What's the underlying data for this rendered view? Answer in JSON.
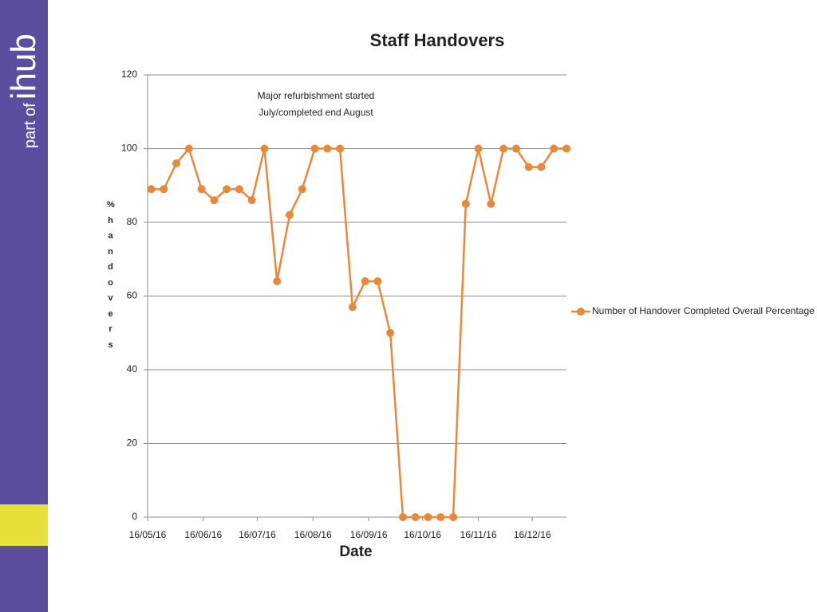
{
  "sidebar": {
    "prefix": "part of",
    "name": "ihub"
  },
  "chart_data": {
    "type": "line",
    "title": "Staff Handovers",
    "annotation": [
      "Major refurbishment started",
      "July/completed end August"
    ],
    "x_label": "Date",
    "y_label": "% handovers",
    "x": [
      "18/05/16",
      "25/05/16",
      "01/06/16",
      "08/06/16",
      "15/06/16",
      "22/06/16",
      "29/06/16",
      "06/07/16",
      "13/07/16",
      "20/07/16",
      "27/07/16",
      "03/08/16",
      "10/08/16",
      "17/08/16",
      "24/08/16",
      "31/08/16",
      "07/09/16",
      "14/09/16",
      "21/09/16",
      "28/09/16",
      "05/10/16",
      "12/10/16",
      "19/10/16",
      "26/10/16",
      "02/11/16",
      "09/11/16",
      "16/11/16",
      "23/11/16",
      "30/11/16",
      "07/12/16",
      "14/12/16",
      "21/12/16",
      "28/12/16",
      "04/01/17"
    ],
    "series": [
      {
        "name": "Number of Handover Completed Overall Percentage",
        "color": "#e8883a",
        "values": [
          89,
          89,
          96,
          100,
          89,
          86,
          89,
          89,
          86,
          100,
          64,
          82,
          89,
          100,
          100,
          100,
          57,
          64,
          64,
          50,
          0,
          0,
          0,
          0,
          0,
          85,
          100,
          85,
          100,
          100,
          95,
          95,
          100,
          100
        ]
      }
    ],
    "xlim": [
      "16/05/16",
      "04/01/17"
    ],
    "xticks": [
      "16/05/16",
      "16/06/16",
      "16/07/16",
      "16/08/16",
      "16/09/16",
      "16/10/16",
      "16/11/16",
      "16/12/16"
    ],
    "ylim": [
      0,
      120
    ],
    "yticks": [
      0,
      20,
      40,
      60,
      80,
      100,
      120
    ],
    "grid": true,
    "legend": "right"
  }
}
